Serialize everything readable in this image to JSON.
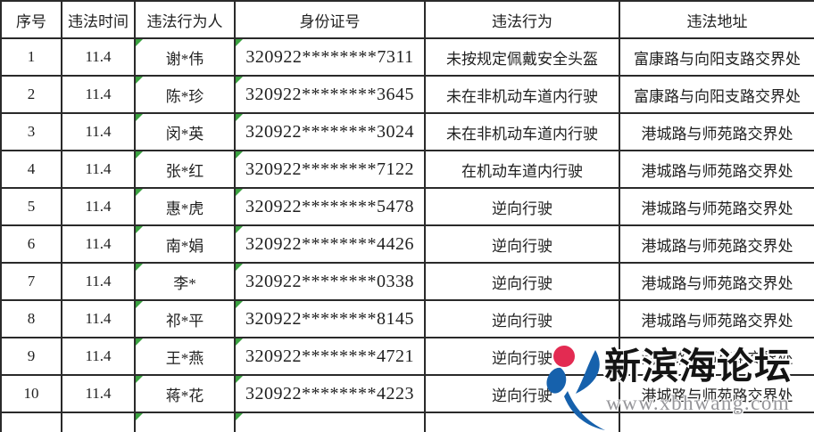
{
  "page": {
    "background_color": "#ffffff",
    "text_color": "#1f1f1f",
    "grid_border_color": "#2a2a2a",
    "cell_marker_color": "#3aa140"
  },
  "table": {
    "columns": [
      "序号",
      "违法时间",
      "违法行为人",
      "身份证号",
      "违法行为",
      "违法地址"
    ],
    "row_keys": [
      "no",
      "time",
      "name",
      "id",
      "violation",
      "address"
    ],
    "marker_columns": [
      "name",
      "id"
    ],
    "rows": [
      {
        "no": "1",
        "time": "11.4",
        "name": "谢*伟",
        "id": "320922********7311",
        "violation": "未按规定佩戴安全头盔",
        "address": "富康路与向阳支路交界处"
      },
      {
        "no": "2",
        "time": "11.4",
        "name": "陈*珍",
        "id": "320922********3645",
        "violation": "未在非机动车道内行驶",
        "address": "富康路与向阳支路交界处"
      },
      {
        "no": "3",
        "time": "11.4",
        "name": "闵*英",
        "id": "320922********3024",
        "violation": "未在非机动车道内行驶",
        "address": "港城路与师苑路交界处"
      },
      {
        "no": "4",
        "time": "11.4",
        "name": "张*红",
        "id": "320922********7122",
        "violation": "在机动车道内行驶",
        "address": "港城路与师苑路交界处"
      },
      {
        "no": "5",
        "time": "11.4",
        "name": "惠*虎",
        "id": "320922********5478",
        "violation": "逆向行驶",
        "address": "港城路与师苑路交界处"
      },
      {
        "no": "6",
        "time": "11.4",
        "name": "南*娟",
        "id": "320922********4426",
        "violation": "逆向行驶",
        "address": "港城路与师苑路交界处"
      },
      {
        "no": "7",
        "time": "11.4",
        "name": "李*",
        "id": "320922********0338",
        "violation": "逆向行驶",
        "address": "港城路与师苑路交界处"
      },
      {
        "no": "8",
        "time": "11.4",
        "name": "祁*平",
        "id": "320922********8145",
        "violation": "逆向行驶",
        "address": "港城路与师苑路交界处"
      },
      {
        "no": "9",
        "time": "11.4",
        "name": "王*燕",
        "id": "320922********4721",
        "violation": "逆向行驶",
        "address": "港城路与师苑路交界处"
      },
      {
        "no": "10",
        "time": "11.4",
        "name": "蒋*花",
        "id": "320922********4223",
        "violation": "逆向行驶",
        "address": "港城路与师苑路交界处"
      },
      {
        "no": "",
        "time": "",
        "name": "",
        "id": "",
        "violation": "",
        "address": ""
      }
    ]
  },
  "watermark": {
    "title": "新滨海论坛",
    "url": "www.xbhwang.com",
    "logo_icon": "swoosh-figure-with-red-dot",
    "logo_blue": "#1661ac",
    "logo_red": "#e32b52",
    "title_color": "#141414",
    "url_color": "#96969a"
  }
}
